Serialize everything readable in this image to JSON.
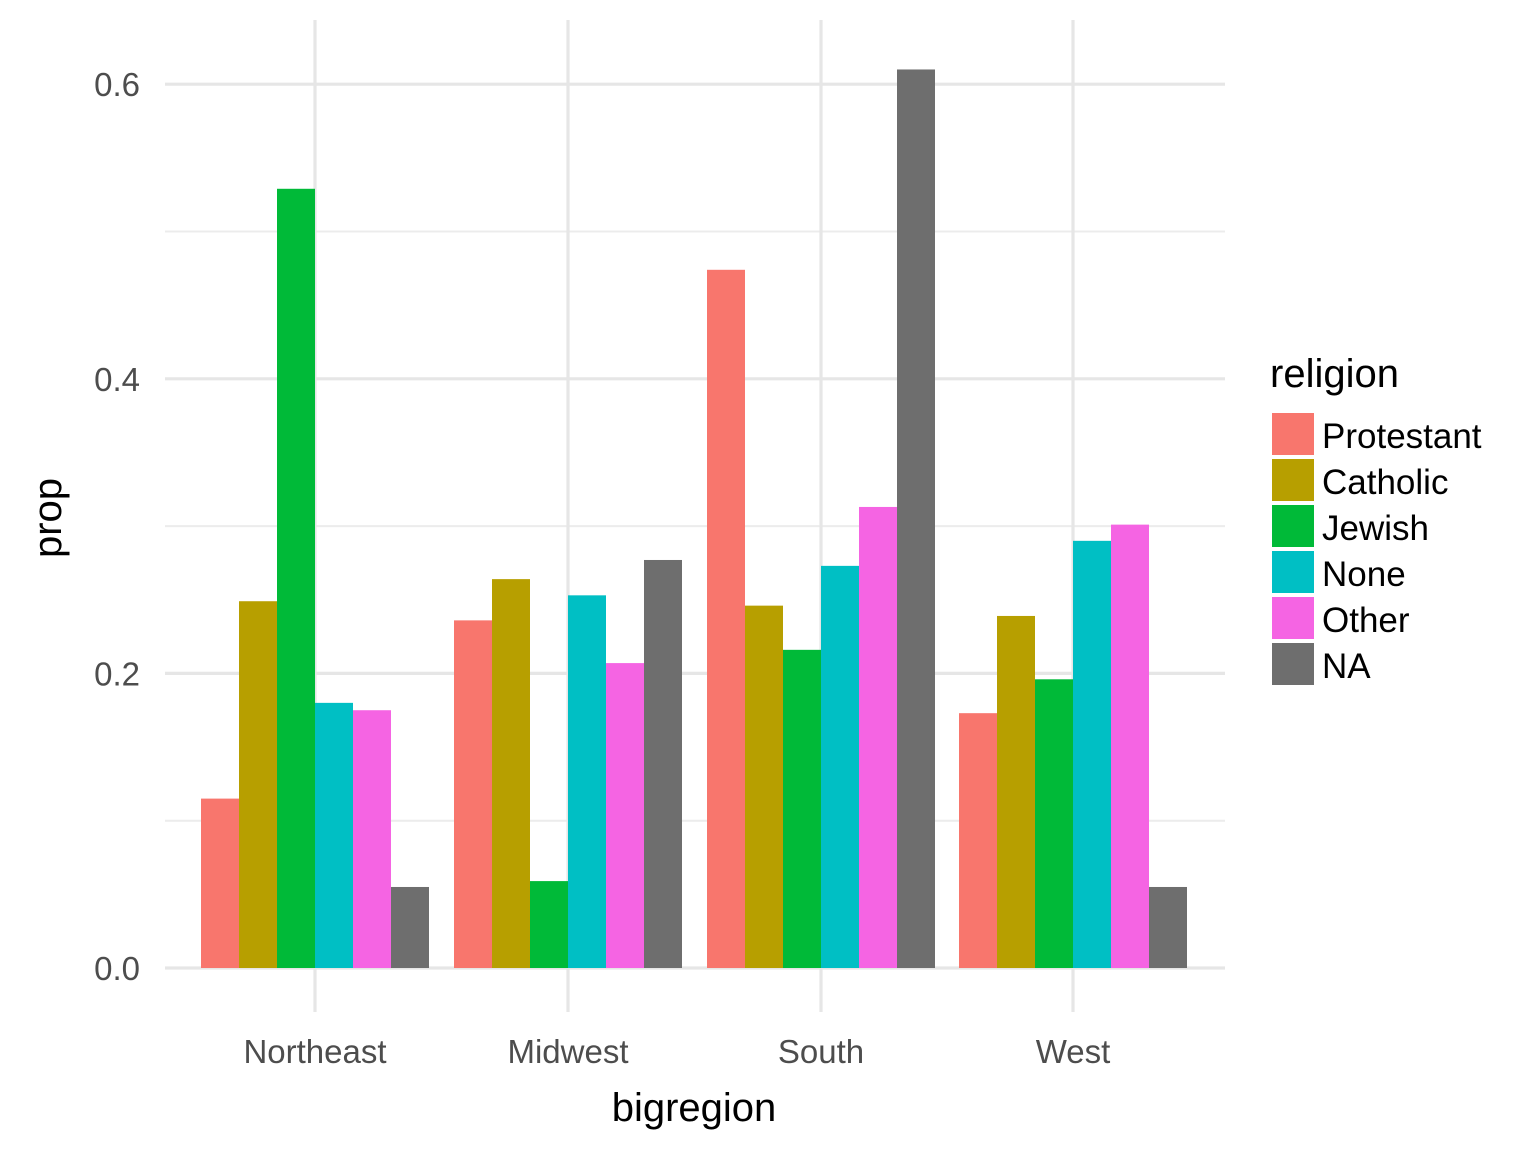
{
  "chart_data": {
    "type": "bar",
    "xlabel": "bigregion",
    "ylabel": "prop",
    "ylim": [
      -0.03,
      0.64
    ],
    "y_ticks": [
      0.0,
      0.2,
      0.4,
      0.6
    ],
    "y_tick_labels": [
      "0.0",
      "0.2",
      "0.4",
      "0.6"
    ],
    "grid": true,
    "legend_title": "religion",
    "legend_position": "right",
    "categories": [
      "Northeast",
      "Midwest",
      "South",
      "West"
    ],
    "series": [
      {
        "name": "Protestant",
        "color": "#F8766D",
        "values": [
          0.115,
          0.236,
          0.474,
          0.173
        ]
      },
      {
        "name": "Catholic",
        "color": "#B79F00",
        "values": [
          0.249,
          0.264,
          0.246,
          0.239
        ]
      },
      {
        "name": "Jewish",
        "color": "#00BA38",
        "values": [
          0.529,
          0.059,
          0.216,
          0.196
        ]
      },
      {
        "name": "None",
        "color": "#00BFC4",
        "values": [
          0.18,
          0.253,
          0.273,
          0.29
        ]
      },
      {
        "name": "Other",
        "color": "#F564E3",
        "values": [
          0.175,
          0.207,
          0.313,
          0.301
        ]
      },
      {
        "name": "NA",
        "color": "#6E6E6E",
        "values": [
          0.055,
          0.277,
          0.61,
          0.055
        ]
      }
    ]
  }
}
